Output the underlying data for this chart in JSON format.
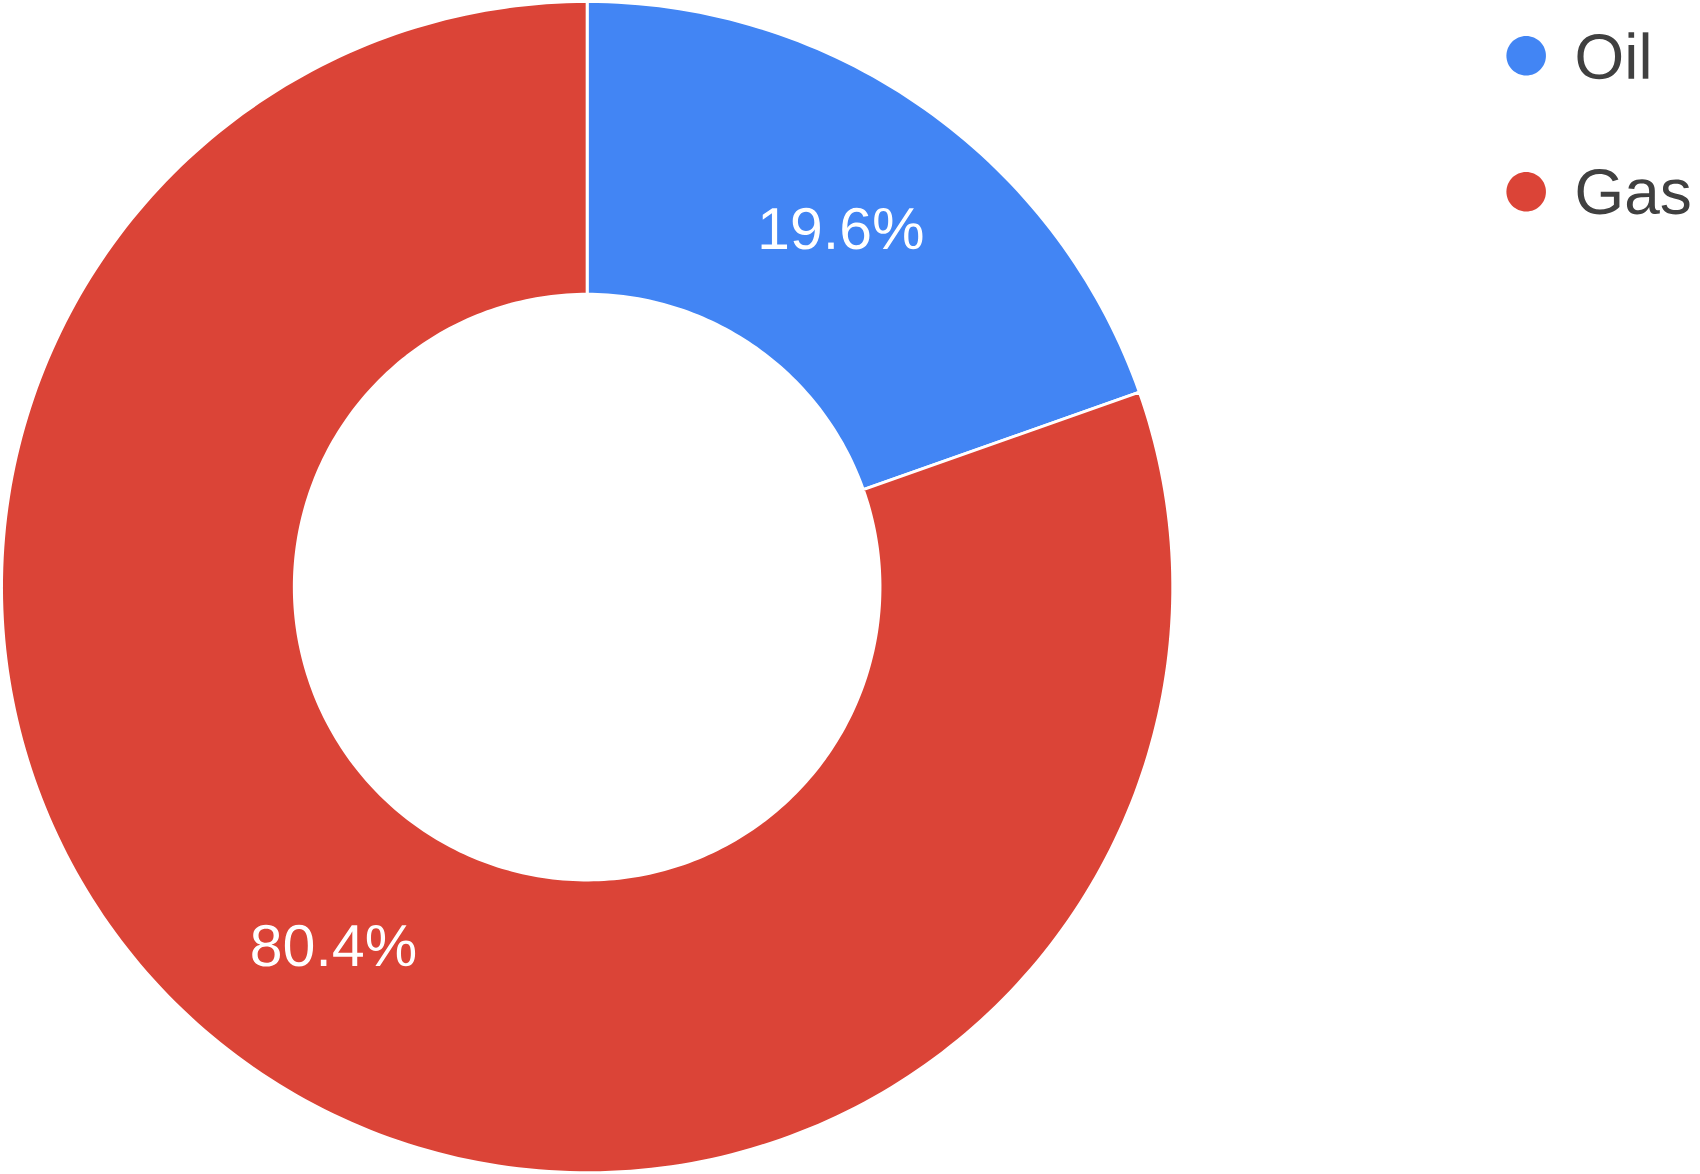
{
  "chart_data": {
    "type": "donut",
    "categories": [
      "Oil",
      "Gas"
    ],
    "values": [
      19.6,
      80.4
    ],
    "colors": [
      "#4285f4",
      "#db4437"
    ],
    "value_labels": [
      "19.6%",
      "80.4%"
    ],
    "legend": "top right"
  }
}
